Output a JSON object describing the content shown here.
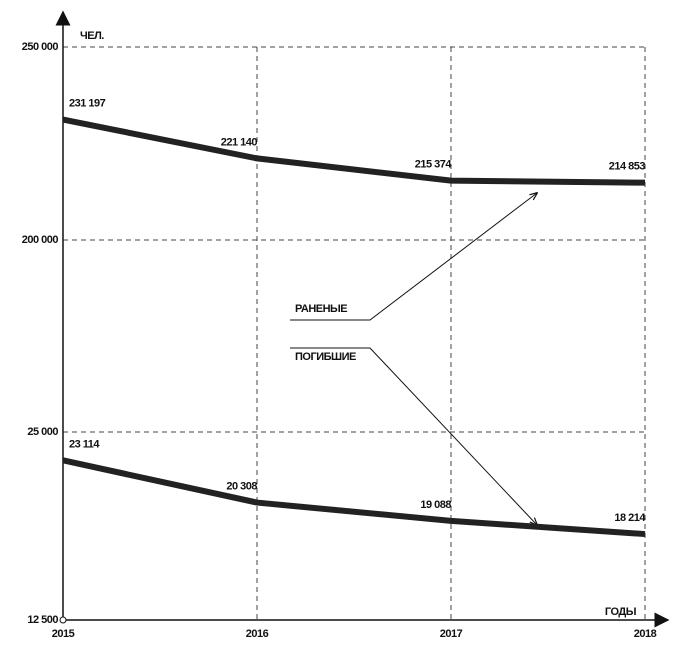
{
  "chart_data": {
    "type": "line",
    "y_axis_label": "ЧЕЛ.",
    "x_axis_label": "ГОДЫ",
    "x": [
      2015,
      2016,
      2017,
      2018
    ],
    "xlim": [
      2015,
      2018
    ],
    "xticks": [
      2015,
      2016,
      2017,
      2018
    ],
    "ylim": [
      12500,
      250000
    ],
    "yticks": [
      {
        "value": 12500,
        "label": "12 500"
      },
      {
        "value": 25000,
        "label": "25 000"
      },
      {
        "value": 200000,
        "label": "200 000"
      },
      {
        "value": 250000,
        "label": "250 000"
      }
    ],
    "grid": true,
    "series": [
      {
        "name": "РАНЕНЫЕ",
        "color": "#222222",
        "values": [
          231197,
          221140,
          215374,
          214853
        ],
        "value_labels": [
          "231 197",
          "221 140",
          "215 374",
          "214 853"
        ]
      },
      {
        "name": "ПОГИБШИЕ",
        "color": "#222222",
        "values": [
          23114,
          20308,
          19088,
          18214
        ],
        "value_labels": [
          "23 114",
          "20 308",
          "19 088",
          "18 214"
        ]
      }
    ]
  }
}
